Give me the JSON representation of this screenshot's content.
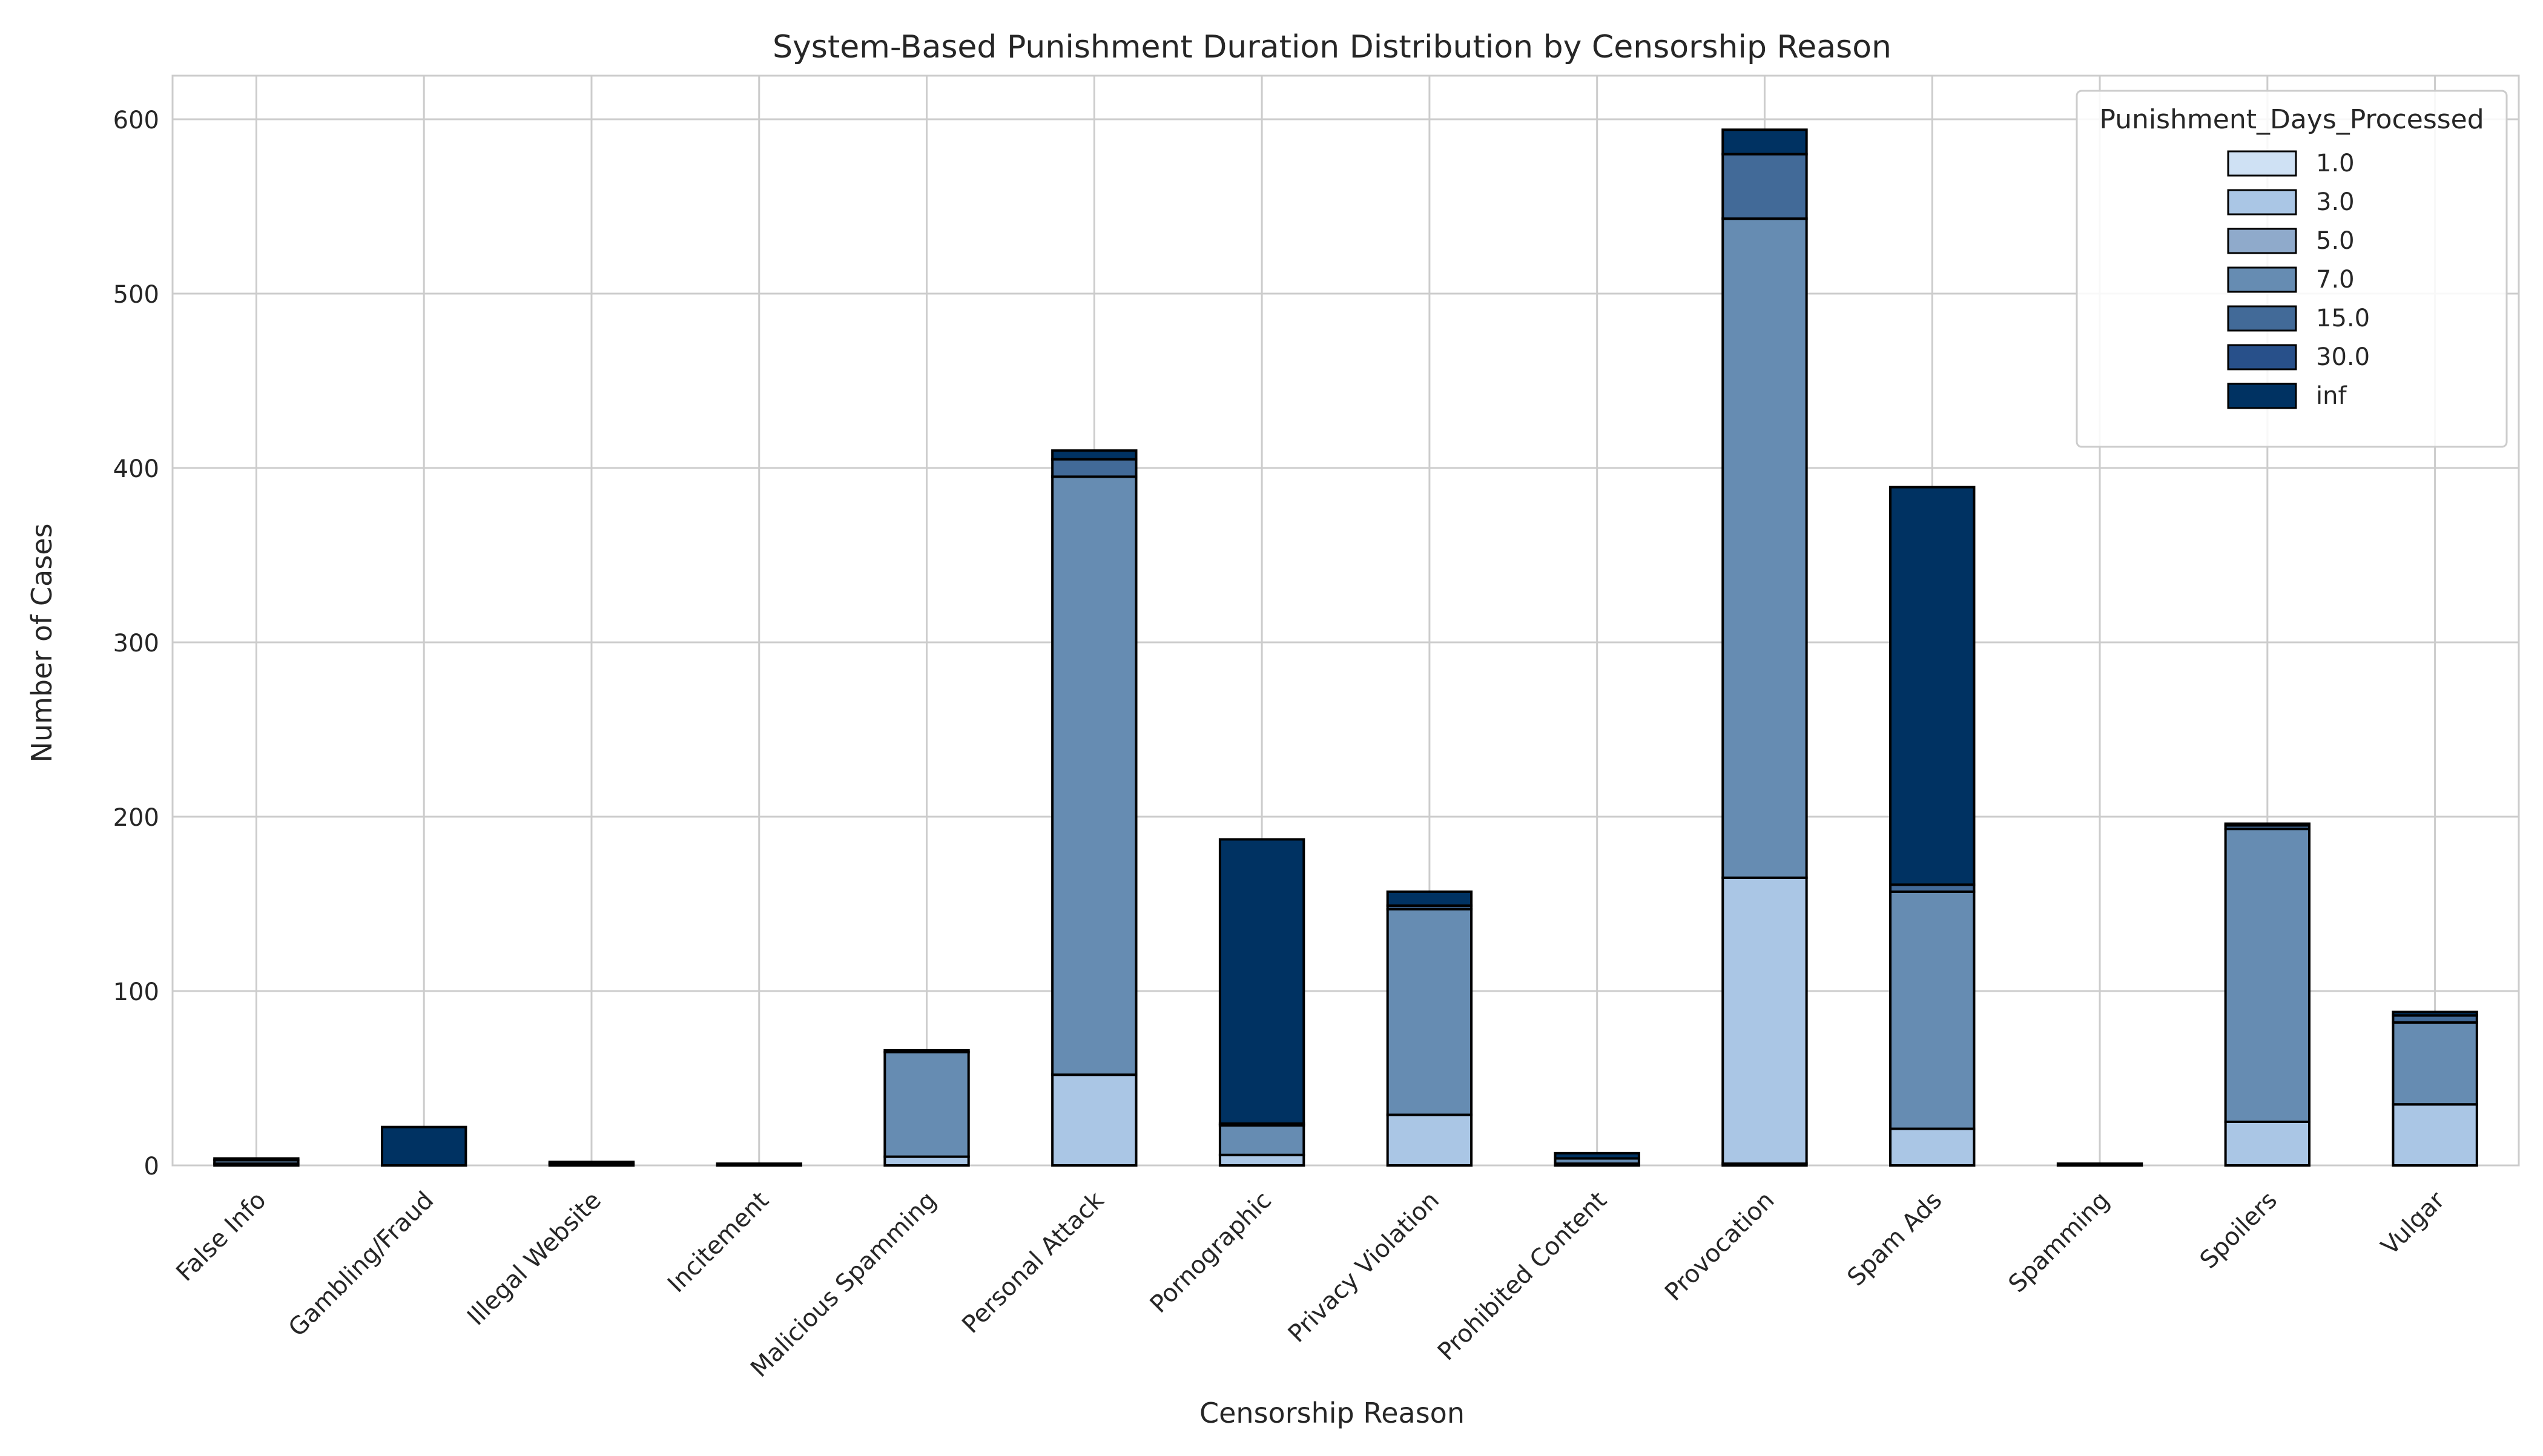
{
  "chart_data": {
    "type": "bar",
    "stacked": true,
    "title": "System-Based Punishment Duration Distribution by Censorship Reason",
    "xlabel": "Censorship Reason",
    "ylabel": "Number of Cases",
    "ylim": [
      0,
      625
    ],
    "yticks": [
      0,
      100,
      200,
      300,
      400,
      500,
      600
    ],
    "grid": true,
    "legend": {
      "title": "Punishment_Days_Processed",
      "placement": "top-right"
    },
    "categories": [
      "False Info",
      "Gambling/Fraud",
      "Illegal Website",
      "Incitement",
      "Malicious Spamming",
      "Personal Attack",
      "Pornographic",
      "Privacy Violation",
      "Prohibited Content",
      "Provocation",
      "Spam Ads",
      "Spamming",
      "Spoilers",
      "Vulgar"
    ],
    "series": [
      {
        "name": "1.0",
        "color": "#cfe1f4",
        "values": [
          0,
          0,
          0,
          0,
          0,
          0,
          0,
          0,
          0,
          1,
          0,
          0,
          0,
          0
        ]
      },
      {
        "name": "3.0",
        "color": "#aac6e5",
        "values": [
          1,
          0,
          0,
          0,
          5,
          52,
          6,
          29,
          1,
          164,
          21,
          0,
          25,
          35
        ]
      },
      {
        "name": "5.0",
        "color": "#8faacb",
        "values": [
          0,
          0,
          0,
          0,
          0,
          0,
          0,
          0,
          0,
          0,
          0,
          0,
          0,
          0
        ]
      },
      {
        "name": "7.0",
        "color": "#668cb2",
        "values": [
          2,
          0,
          1,
          1,
          60,
          343,
          17,
          118,
          3,
          378,
          136,
          1,
          168,
          47
        ]
      },
      {
        "name": "15.0",
        "color": "#426a98",
        "values": [
          0,
          0,
          0,
          0,
          1,
          10,
          1,
          2,
          0,
          37,
          4,
          0,
          2,
          4
        ]
      },
      {
        "name": "30.0",
        "color": "#28508a",
        "values": [
          0,
          0,
          0,
          0,
          0,
          0,
          0,
          0,
          0,
          0,
          0,
          0,
          0,
          0
        ]
      },
      {
        "name": "inf",
        "color": "#003262",
        "values": [
          1,
          22,
          1,
          0,
          0,
          5,
          163,
          8,
          3,
          14,
          228,
          0,
          1,
          2
        ]
      }
    ]
  }
}
